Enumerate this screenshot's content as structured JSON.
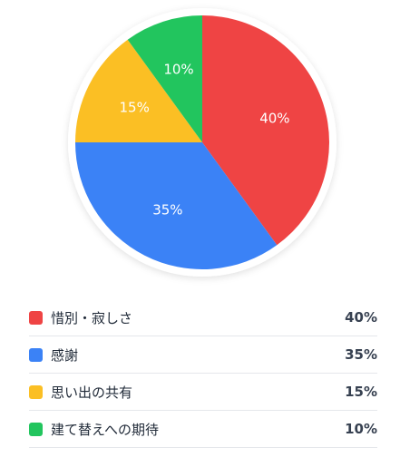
{
  "chart_data": {
    "type": "pie",
    "slices": [
      {
        "label": "惜別・寂しさ",
        "value": 40,
        "display": "40%",
        "color": "#ef4444"
      },
      {
        "label": "感謝",
        "value": 35,
        "display": "35%",
        "color": "#3b82f6"
      },
      {
        "label": "思い出の共有",
        "value": 15,
        "display": "15%",
        "color": "#fbbf24"
      },
      {
        "label": "建て替えへの期待",
        "value": 10,
        "display": "10%",
        "color": "#22c55e"
      }
    ],
    "legend_position": "bottom"
  }
}
